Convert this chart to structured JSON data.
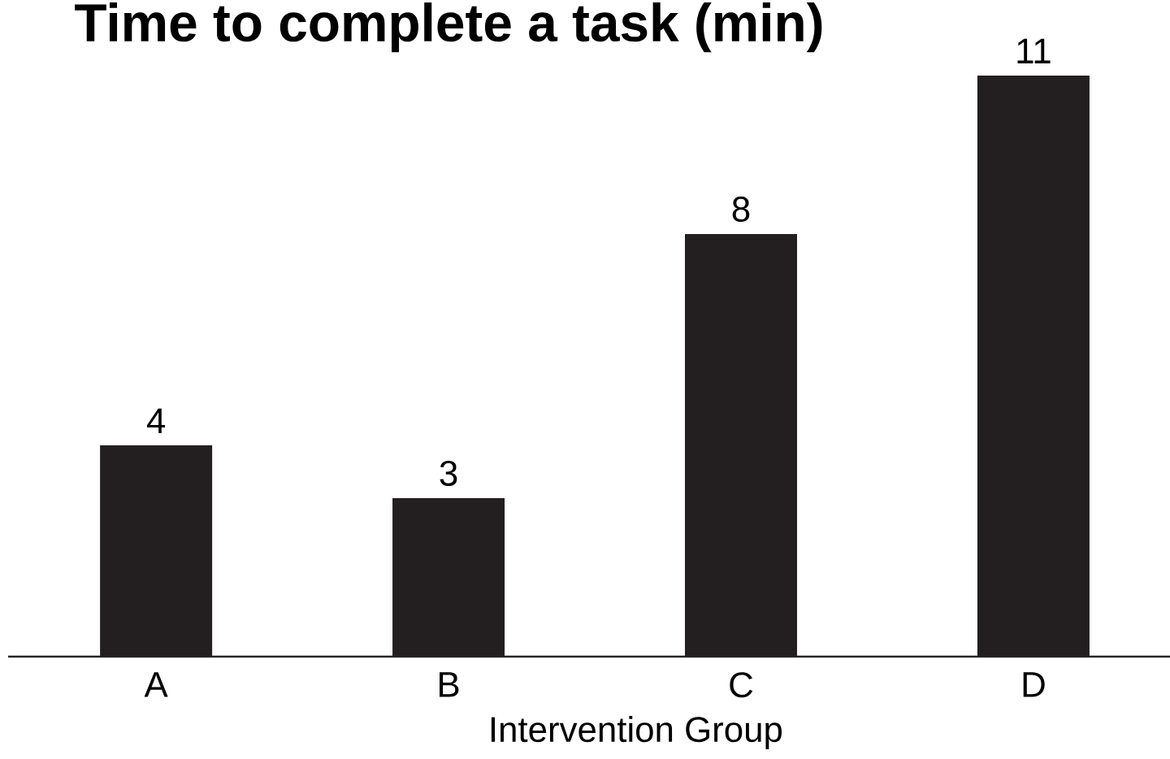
{
  "chart_data": {
    "type": "bar",
    "title": "Time to complete a task (min)",
    "xlabel": "Intervention Group",
    "categories": [
      "A",
      "B",
      "C",
      "D"
    ],
    "values": [
      4,
      3,
      8,
      11
    ],
    "color": "#231f20",
    "data_labels": true,
    "tick_labels": "x"
  }
}
